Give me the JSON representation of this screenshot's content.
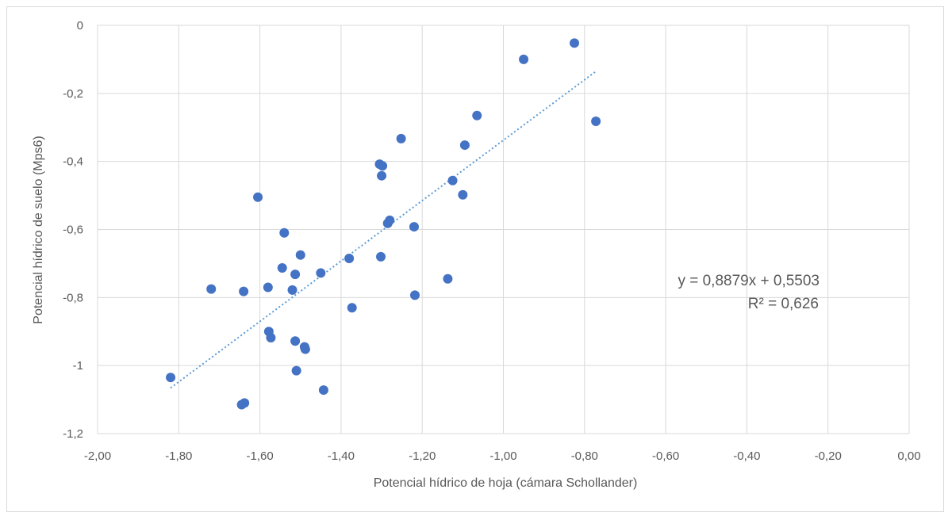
{
  "chart_data": {
    "type": "scatter",
    "xlabel": "Potencial hídrico de hoja (cámara Schollander)",
    "ylabel": "Potencial hídrico de suelo (Mps6)",
    "xlim": [
      -2.0,
      0.0
    ],
    "ylim": [
      -1.2,
      0.0
    ],
    "x_tick_labels": [
      "-2,00",
      "-1,80",
      "-1,60",
      "-1,40",
      "-1,20",
      "-1,00",
      "-0,80",
      "-0,60",
      "-0,40",
      "-0,20",
      "0,00"
    ],
    "y_tick_labels": [
      "0",
      "-0,2",
      "-0,4",
      "-0,6",
      "-0,8",
      "-1",
      "-1,2"
    ],
    "grid": true,
    "marker_color": "#4472c4",
    "trendline_color": "#5b9bd5",
    "trendline": {
      "slope": 0.8879,
      "intercept": 0.5503,
      "x_range": [
        -1.82,
        -0.77
      ],
      "style": "dotted"
    },
    "annotation": {
      "equation": "y = 0,8879x + 0,5503",
      "r2": "R² = 0,626"
    },
    "points": [
      {
        "x": -1.82,
        "y": -1.035
      },
      {
        "x": -1.72,
        "y": -0.775
      },
      {
        "x": -1.645,
        "y": -1.115
      },
      {
        "x": -1.638,
        "y": -1.11
      },
      {
        "x": -1.64,
        "y": -0.782
      },
      {
        "x": -1.605,
        "y": -0.505
      },
      {
        "x": -1.58,
        "y": -0.77
      },
      {
        "x": -1.578,
        "y": -0.9
      },
      {
        "x": -1.573,
        "y": -0.918
      },
      {
        "x": -1.545,
        "y": -0.713
      },
      {
        "x": -1.54,
        "y": -0.61
      },
      {
        "x": -1.52,
        "y": -0.778
      },
      {
        "x": -1.513,
        "y": -0.732
      },
      {
        "x": -1.513,
        "y": -0.928
      },
      {
        "x": -1.51,
        "y": -1.015
      },
      {
        "x": -1.5,
        "y": -0.675
      },
      {
        "x": -1.49,
        "y": -0.945
      },
      {
        "x": -1.488,
        "y": -0.952
      },
      {
        "x": -1.45,
        "y": -0.728
      },
      {
        "x": -1.443,
        "y": -1.072
      },
      {
        "x": -1.38,
        "y": -0.685
      },
      {
        "x": -1.373,
        "y": -0.83
      },
      {
        "x": -1.305,
        "y": -0.408
      },
      {
        "x": -1.298,
        "y": -0.413
      },
      {
        "x": -1.3,
        "y": -0.442
      },
      {
        "x": -1.302,
        "y": -0.68
      },
      {
        "x": -1.285,
        "y": -0.582
      },
      {
        "x": -1.28,
        "y": -0.573
      },
      {
        "x": -1.252,
        "y": -0.333
      },
      {
        "x": -1.22,
        "y": -0.592
      },
      {
        "x": -1.218,
        "y": -0.793
      },
      {
        "x": -1.137,
        "y": -0.745
      },
      {
        "x": -1.125,
        "y": -0.456
      },
      {
        "x": -1.1,
        "y": -0.498
      },
      {
        "x": -1.095,
        "y": -0.352
      },
      {
        "x": -1.065,
        "y": -0.265
      },
      {
        "x": -0.95,
        "y": -0.1
      },
      {
        "x": -0.825,
        "y": -0.052
      },
      {
        "x": -0.772,
        "y": -0.282
      }
    ]
  }
}
